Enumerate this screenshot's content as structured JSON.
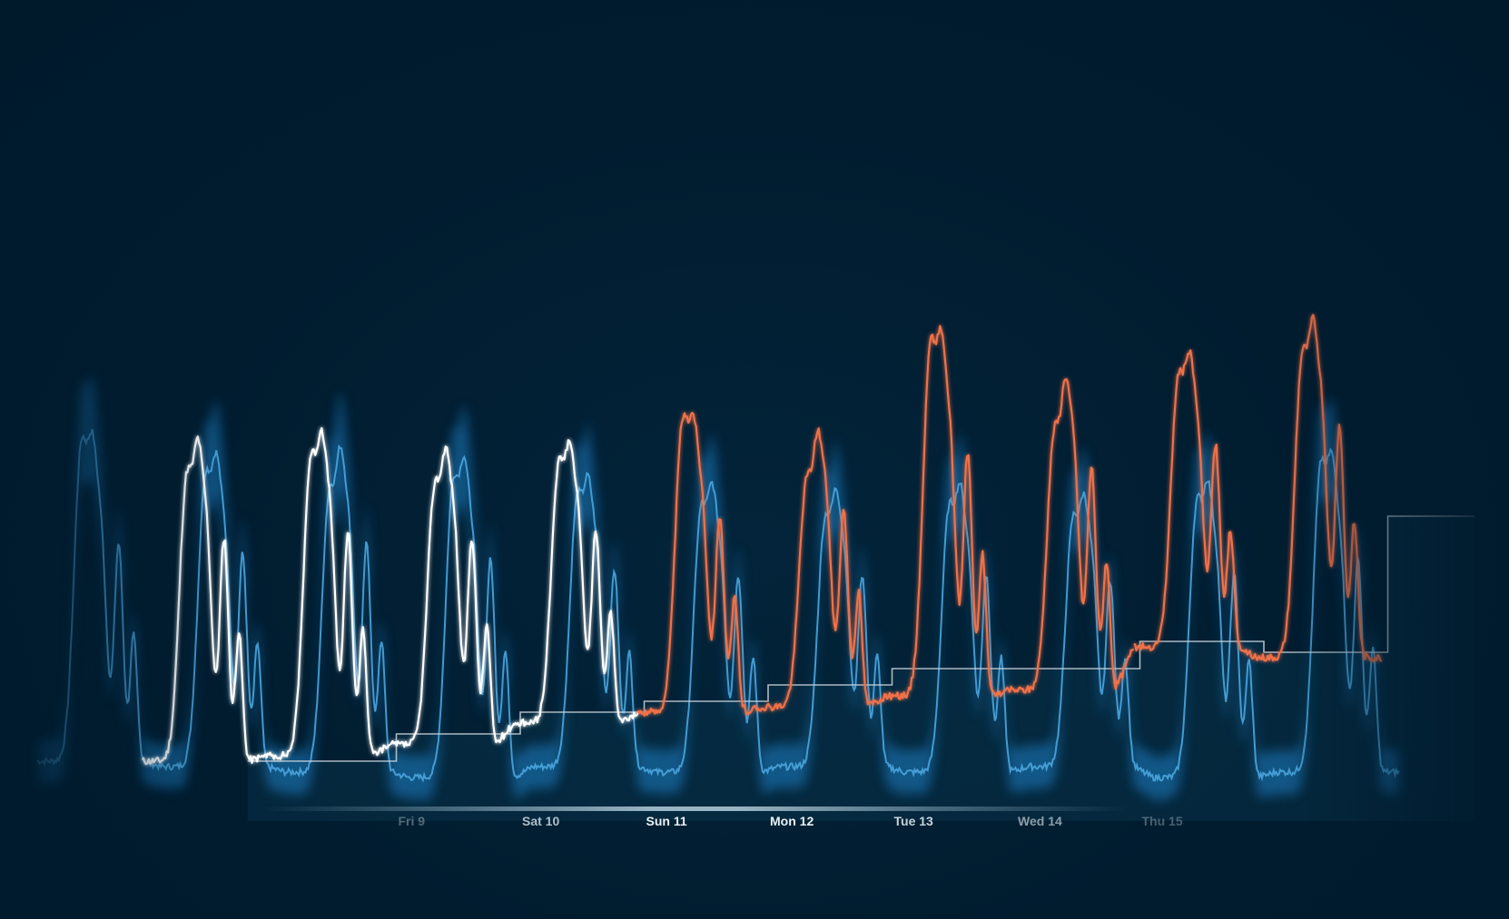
{
  "chart_data": {
    "type": "line",
    "title": "",
    "xlabel": "",
    "ylabel": "",
    "grid": "vertical lines at day boundaries",
    "legend": "none",
    "colors": {
      "background": "#001b2e",
      "forecast_band": "#1a7fc4",
      "forecast_line": "#4aa6de",
      "actual": "#ffffff",
      "actual_above": "#f0714a",
      "baseline": "#c9d3da",
      "baseline_fill": "#0a3149",
      "gridline": "#1d4f72",
      "axis_bar": "#8fb1c4"
    },
    "x_tick_labels": [
      {
        "day": 1,
        "label": "Fri 9",
        "opacity": 0.35
      },
      {
        "day": 2,
        "label": "Sat 10",
        "opacity": 0.75
      },
      {
        "day": 3,
        "label": "Sun 11",
        "opacity": 1.0
      },
      {
        "day": 4,
        "label": "Mon 12",
        "opacity": 1.0
      },
      {
        "day": 5,
        "label": "Tue 13",
        "opacity": 0.85
      },
      {
        "day": 6,
        "label": "Wed 14",
        "opacity": 0.6
      },
      {
        "day": 7,
        "label": "Thu 15",
        "opacity": 0.3
      }
    ],
    "x_range_days": [
      -0.6,
      8.8
    ],
    "y_range": [
      0,
      100
    ],
    "day_boundaries": [
      -1,
      0,
      1,
      2,
      3,
      4,
      5,
      6,
      7,
      8
    ],
    "series": [
      {
        "role": "baseline",
        "step_levels": [
          {
            "from": -0.2,
            "to": 1.0,
            "value": 16
          },
          {
            "from": 1.0,
            "to": 2.0,
            "value": 21
          },
          {
            "from": 2.0,
            "to": 3.0,
            "value": 25
          },
          {
            "from": 3.0,
            "to": 4.0,
            "value": 27
          },
          {
            "from": 4.0,
            "to": 5.0,
            "value": 30
          },
          {
            "from": 5.0,
            "to": 6.0,
            "value": 33
          },
          {
            "from": 6.0,
            "to": 7.0,
            "value": 33
          },
          {
            "from": 7.0,
            "to": 8.0,
            "value": 38
          },
          {
            "from": 8.0,
            "to": 9.0,
            "value": 36
          },
          {
            "from": 9.0,
            "to": 9.7,
            "value": 61
          }
        ]
      },
      {
        "role": "forecast",
        "daily_profile": [
          {
            "min": 16,
            "peak": 74,
            "second": 58
          },
          {
            "min": 15,
            "peak": 68,
            "second": 56
          },
          {
            "min": 14,
            "peak": 65,
            "second": 58
          },
          {
            "min": 13,
            "peak": 67,
            "second": 55
          },
          {
            "min": 15,
            "peak": 64,
            "second": 53
          },
          {
            "min": 14,
            "peak": 62,
            "second": 52
          },
          {
            "min": 15,
            "peak": 60,
            "second": 52
          },
          {
            "min": 14,
            "peak": 62,
            "second": 52
          },
          {
            "min": 15,
            "peak": 60,
            "second": 51
          },
          {
            "min": 13,
            "peak": 63,
            "second": 52
          },
          {
            "min": 14,
            "peak": 70,
            "second": 55
          }
        ]
      },
      {
        "role": "actual",
        "daily_profile": [
          {
            "min": 16,
            "peak": 68,
            "second": 59,
            "above": false
          },
          {
            "min": 17,
            "peak": 71,
            "second": 60,
            "above": false
          },
          {
            "min": 19,
            "peak": 66,
            "second": 59,
            "above": false
          },
          {
            "min": 23,
            "peak": 70,
            "second": 60,
            "above": false
          },
          {
            "min": 25,
            "peak": 78,
            "second": 63,
            "above": true
          },
          {
            "min": 26,
            "peak": 67,
            "second": 64,
            "above": true
          },
          {
            "min": 28,
            "peak": 92,
            "second": 75,
            "above": true
          },
          {
            "min": 29,
            "peak": 76,
            "second": 72,
            "above": true
          },
          {
            "min": 37,
            "peak": 86,
            "second": 76,
            "above": true
          },
          {
            "min": 35,
            "peak": 90,
            "second": 80,
            "above": true
          }
        ]
      }
    ]
  }
}
